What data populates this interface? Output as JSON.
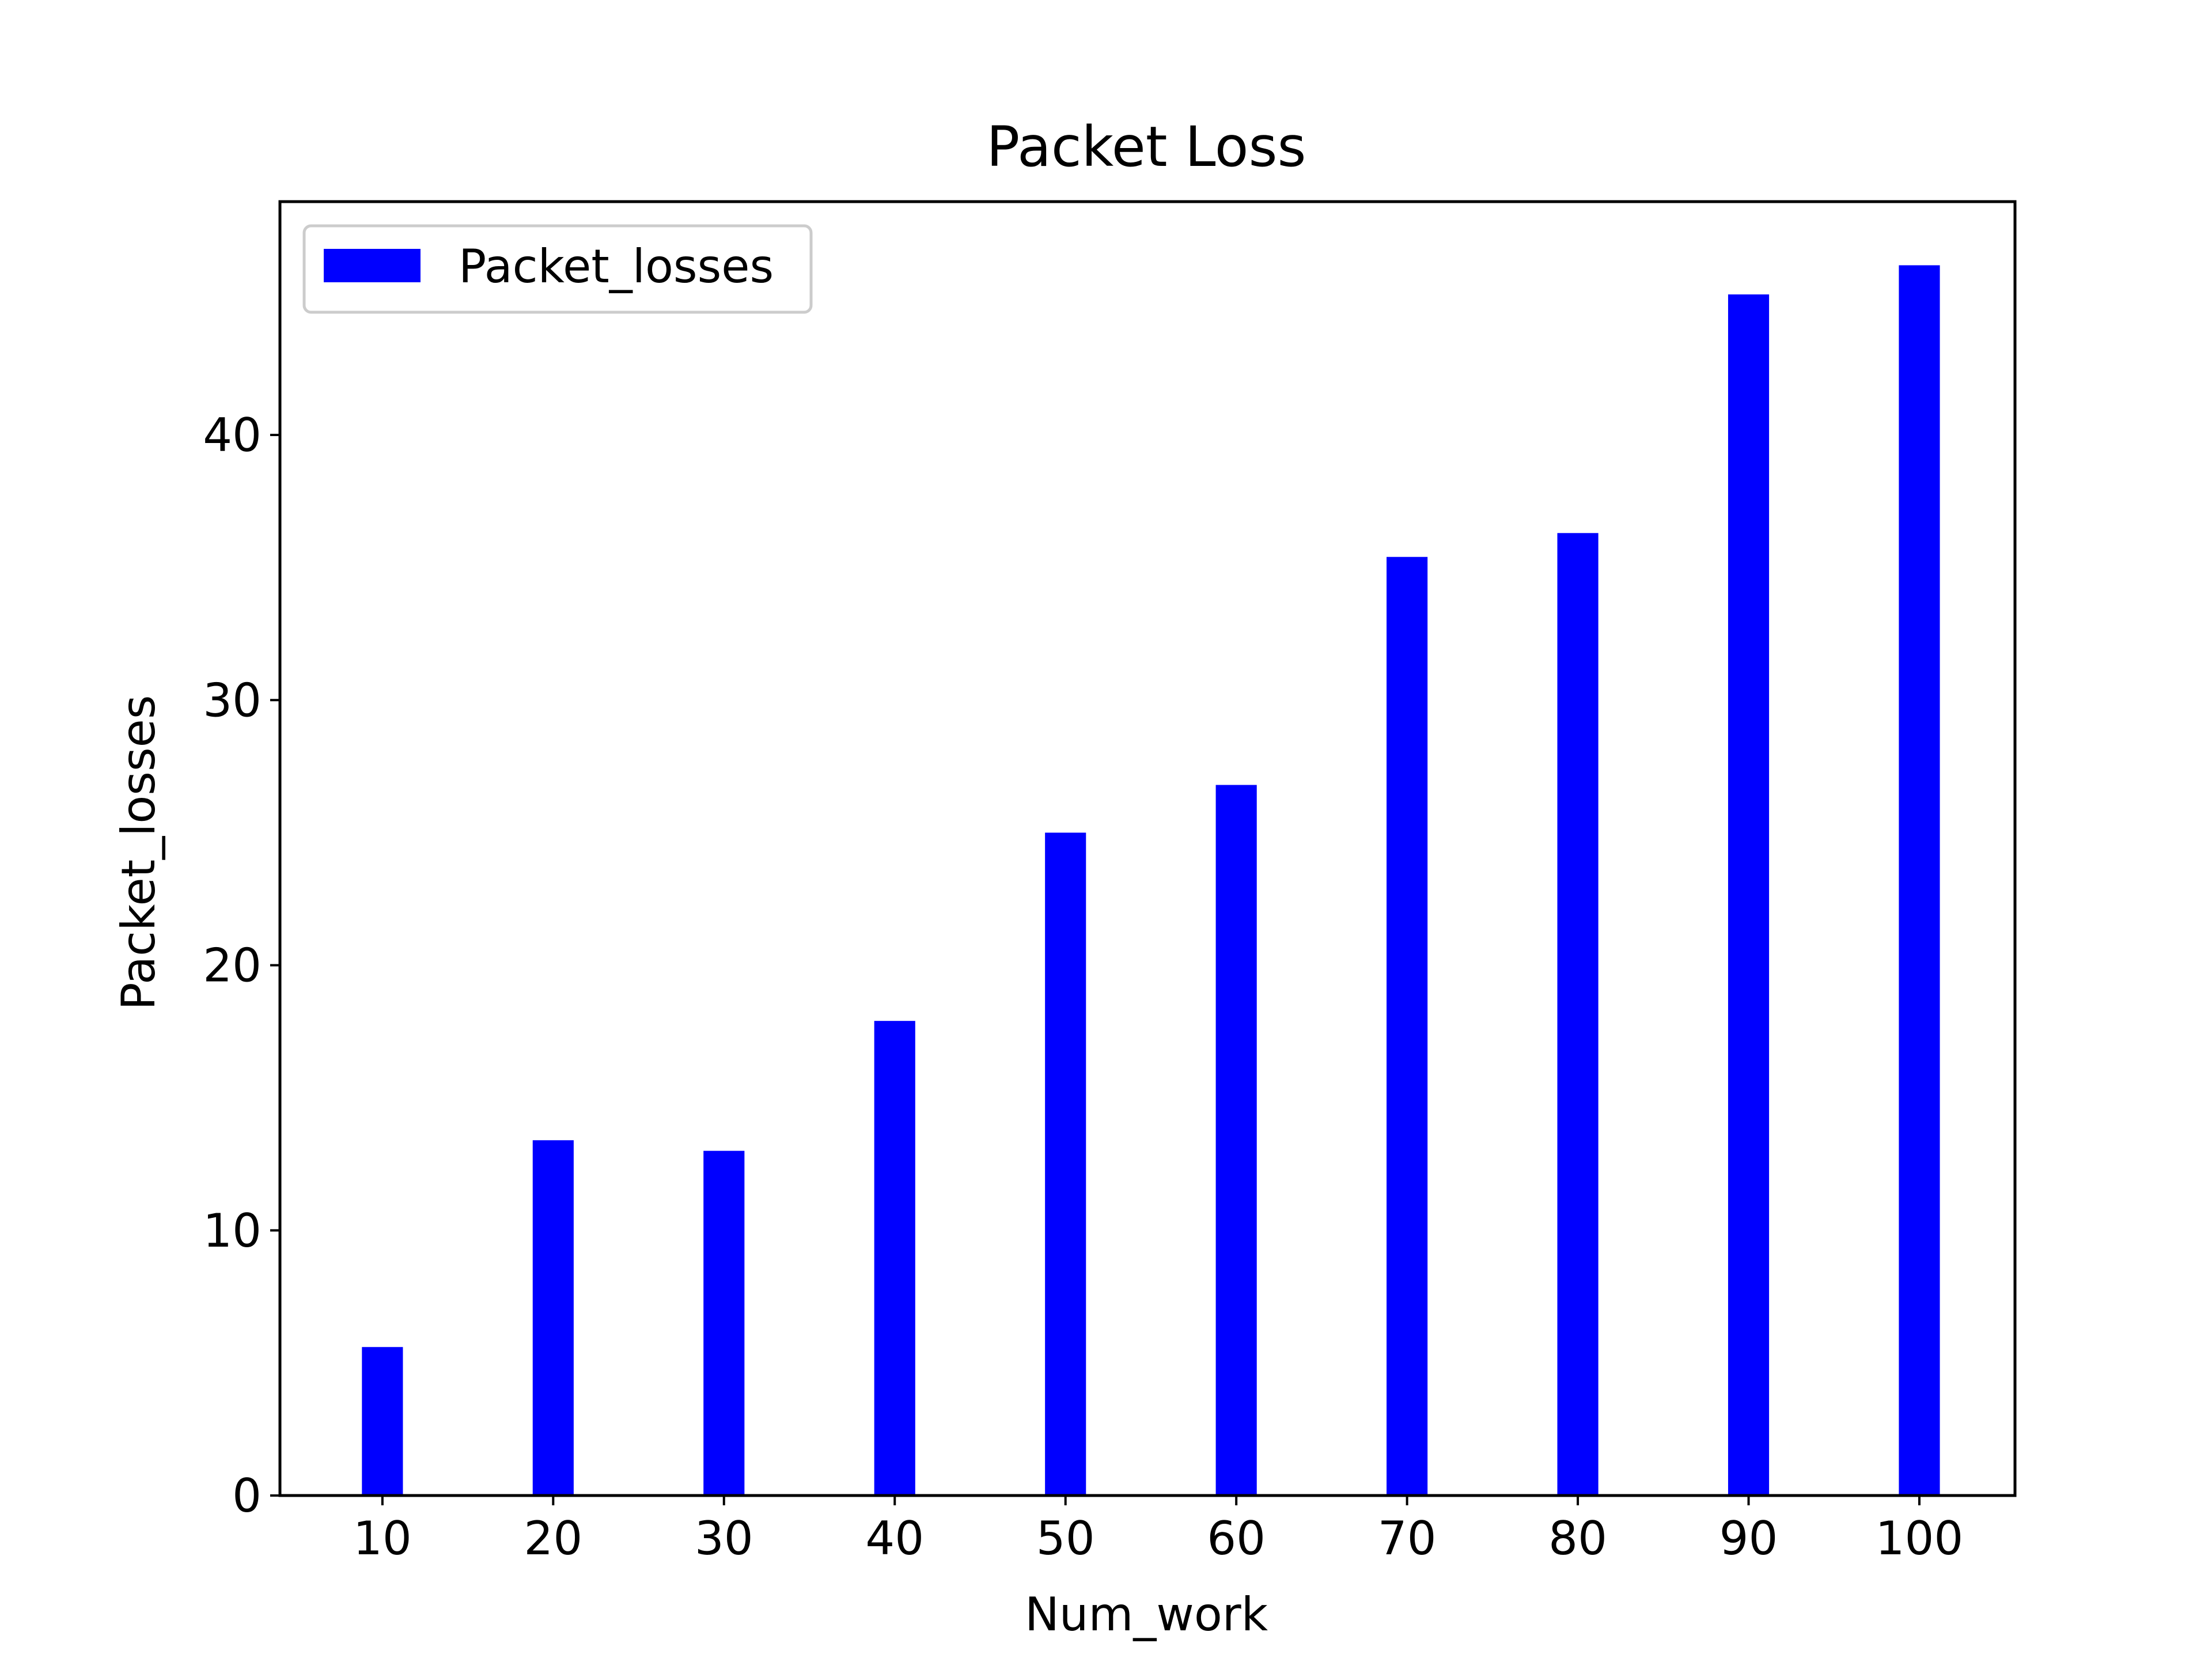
{
  "chart_data": {
    "type": "bar",
    "title": "Packet Loss",
    "xlabel": "Num_work",
    "ylabel": "Packet_losses",
    "categories": [
      "10",
      "20",
      "30",
      "40",
      "50",
      "60",
      "70",
      "80",
      "90",
      "100"
    ],
    "x": [
      10,
      20,
      30,
      40,
      50,
      60,
      70,
      80,
      90,
      100
    ],
    "series": [
      {
        "name": "Packet_losses",
        "color": "#0000ff",
        "values": [
          5.6,
          13.4,
          13.0,
          17.9,
          25.0,
          26.8,
          35.4,
          36.3,
          45.3,
          46.4
        ]
      }
    ],
    "xlim": [
      4.0,
      105.6
    ],
    "ylim": [
      0,
      48.8
    ],
    "yticks": [
      0,
      10,
      20,
      30,
      40
    ],
    "grid": false,
    "legend_position": "top-left"
  }
}
